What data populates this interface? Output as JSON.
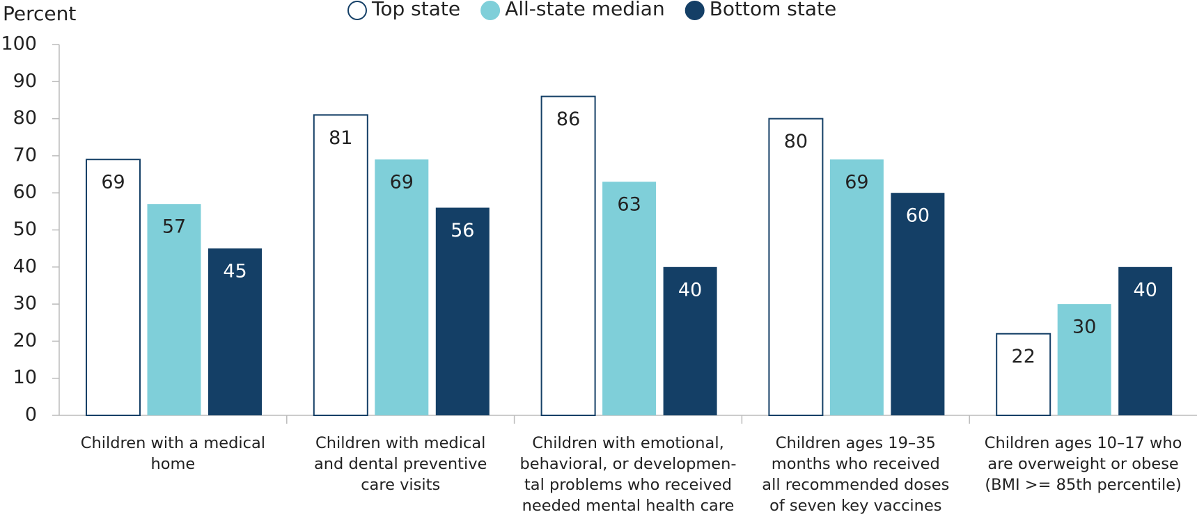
{
  "chart_data": {
    "type": "bar",
    "y_label": "Percent",
    "categories": [
      "Children with a medical\nhome",
      "Children with medical\nand dental preventive\ncare visits",
      "Children with emotional,\nbehavioral, or developmen-\ntal problems who received\nneeded mental health care",
      "Children ages 19–35\nmonths who received\nall recommended doses\nof seven key vaccines",
      "Children ages 10–17 who\nare overweight or obese\n(BMI >= 85th percentile)"
    ],
    "series": [
      {
        "name": "Top state",
        "color": "#ffffff",
        "values": [
          69,
          81,
          86,
          80,
          22
        ]
      },
      {
        "name": "All-state median",
        "color": "#7fcfd9",
        "values": [
          57,
          69,
          63,
          69,
          30
        ]
      },
      {
        "name": "Bottom state",
        "color": "#143f66",
        "values": [
          45,
          56,
          40,
          60,
          40
        ]
      }
    ],
    "ylim": [
      0,
      100
    ],
    "yticks": [
      0,
      10,
      20,
      30,
      40,
      50,
      60,
      70,
      80,
      90,
      100
    ],
    "grid": false
  }
}
